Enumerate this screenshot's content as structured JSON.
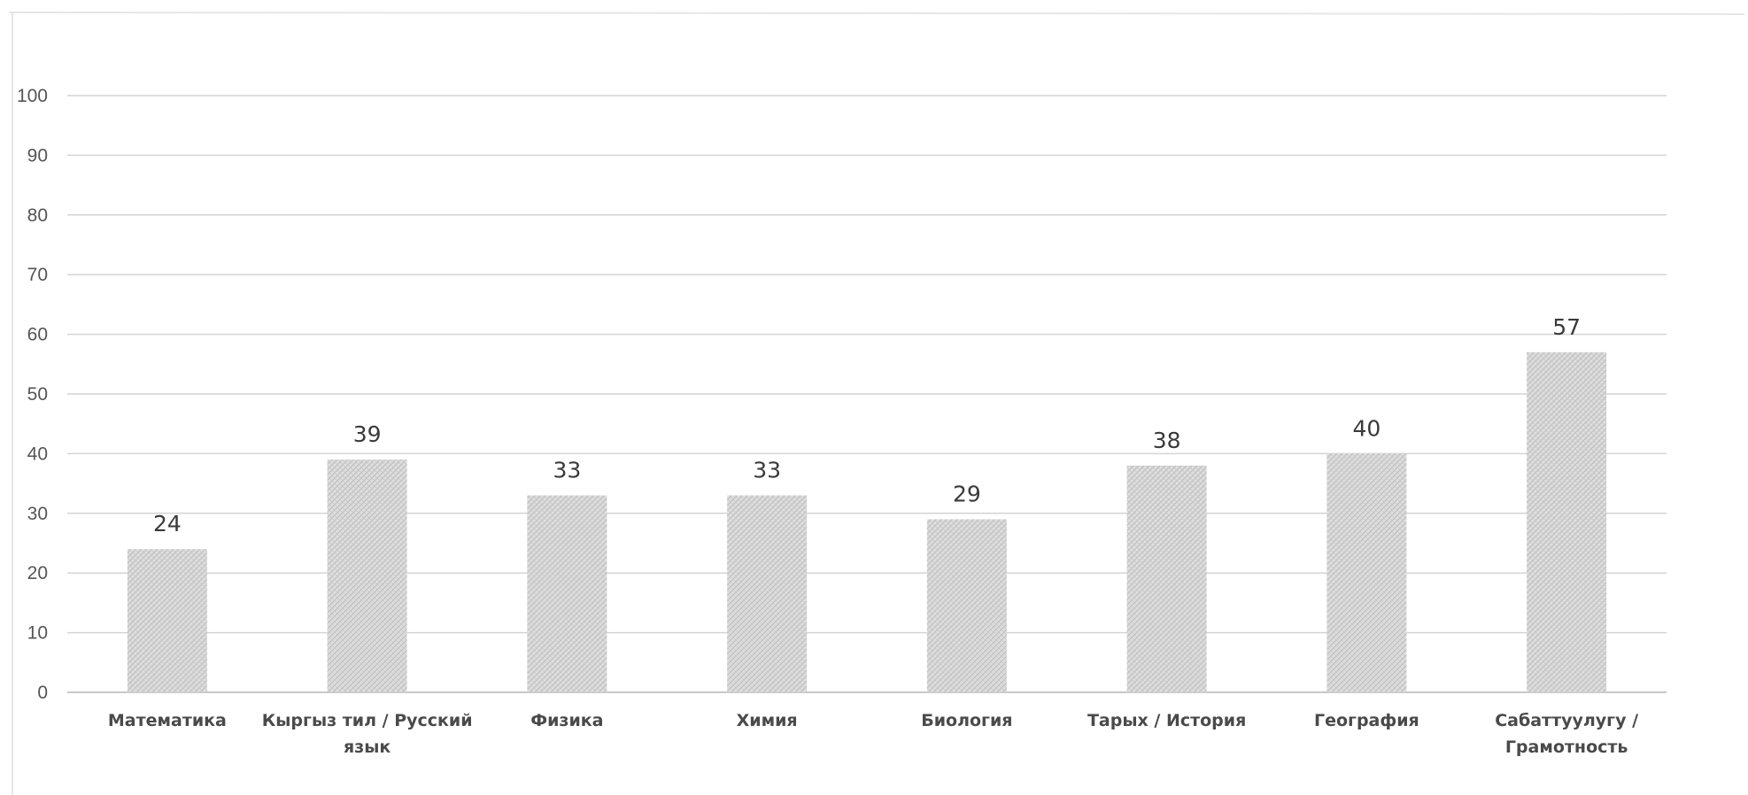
{
  "chart_data": {
    "type": "bar",
    "title": "",
    "xlabel": "",
    "ylabel": "",
    "categories": [
      [
        "Математика"
      ],
      [
        "Кыргыз тил / Русский",
        "язык"
      ],
      [
        "Физика"
      ],
      [
        "Химия"
      ],
      [
        "Биология"
      ],
      [
        "Тарых / История"
      ],
      [
        "География"
      ],
      [
        "Сабаттуулугу /",
        "Грамотность"
      ]
    ],
    "values": [
      24,
      39,
      33,
      33,
      29,
      38,
      40,
      57
    ],
    "ylim": [
      0,
      100
    ],
    "yticks": [
      0,
      10,
      20,
      30,
      40,
      50,
      60,
      70,
      80,
      90,
      100
    ],
    "grid": true,
    "legend": "none",
    "colors": {
      "bar_fill": "#d9d9d9",
      "bar_pattern": "#bdbdbd",
      "gridline": "#d4d4d4",
      "text": "#4a4a4a"
    }
  }
}
